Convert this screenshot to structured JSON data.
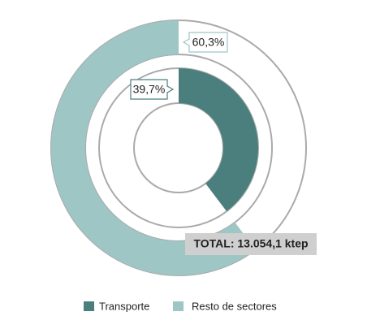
{
  "chart_data": {
    "type": "nested-donut",
    "series": [
      {
        "name": "Transporte",
        "color": "#4a7f7d",
        "values": [
          39.7
        ],
        "value_labels": [
          "39,7%"
        ]
      },
      {
        "name": "Resto de sectores",
        "color": "#9dc6c5",
        "values": [
          60.3
        ],
        "value_labels": [
          "60,3%"
        ]
      }
    ],
    "annotation": "TOTAL: 13.054,1 ktep"
  }
}
